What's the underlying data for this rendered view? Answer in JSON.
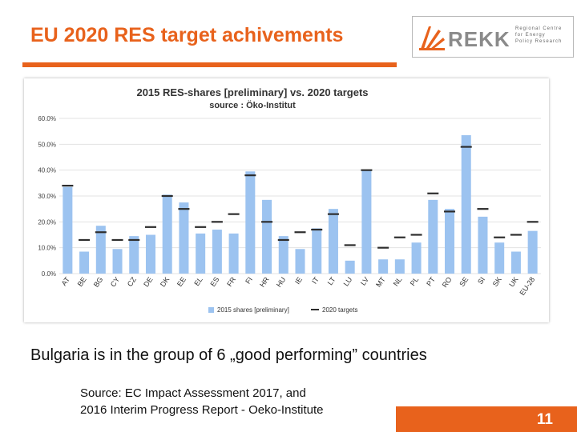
{
  "slide": {
    "title": "EU 2020 RES target achivements",
    "caption": "Bulgaria is in the group of 6 „good performing” countries",
    "source_line1": "Source: EC Impact Assessment 2017, and",
    "source_line2": "2016 Interim Progress Report - Oeko-Institute",
    "page_number": "11"
  },
  "logo": {
    "word": "REKK",
    "tagline": [
      "Regional Centre",
      "for Energy",
      "Policy Research"
    ]
  },
  "colors": {
    "accent": "#e8621c",
    "bar": "#9cc3f0",
    "target": "#2d2d2d"
  },
  "chart_data": {
    "type": "bar",
    "title": "2015 RES-shares [preliminary] vs. 2020 targets",
    "subtitle": "source : Öko-Institut",
    "categories": [
      "AT",
      "BE",
      "BG",
      "CY",
      "CZ",
      "DE",
      "DK",
      "EE",
      "EL",
      "ES",
      "FR",
      "FI",
      "HR",
      "HU",
      "IE",
      "IT",
      "LT",
      "LU",
      "LV",
      "MT",
      "NL",
      "PL",
      "PT",
      "RO",
      "SE",
      "SI",
      "SK",
      "UK",
      "EU-28"
    ],
    "ylim": [
      0,
      60
    ],
    "yticks": [
      "0.0%",
      "10.0%",
      "20.0%",
      "30.0%",
      "40.0%",
      "50.0%",
      "60.0%"
    ],
    "grid": true,
    "legend_position": "bottom",
    "series": [
      {
        "name": "2015 shares [preliminary]",
        "kind": "bar",
        "values": [
          33.5,
          8.5,
          18.5,
          9.5,
          14.5,
          15,
          30.5,
          27.5,
          15.5,
          17,
          15.5,
          39.5,
          28.5,
          14.5,
          9.5,
          17.5,
          25,
          5,
          40,
          5.5,
          5.5,
          12,
          28.5,
          25,
          53.5,
          22,
          12,
          8.5,
          16.5
        ]
      },
      {
        "name": "2020 targets",
        "kind": "marker",
        "values": [
          34,
          13,
          16,
          13,
          13,
          18,
          30,
          25,
          18,
          20,
          23,
          38,
          20,
          13,
          16,
          17,
          23,
          11,
          40,
          10,
          14,
          15,
          31,
          24,
          49,
          25,
          14,
          15,
          20
        ]
      }
    ]
  }
}
